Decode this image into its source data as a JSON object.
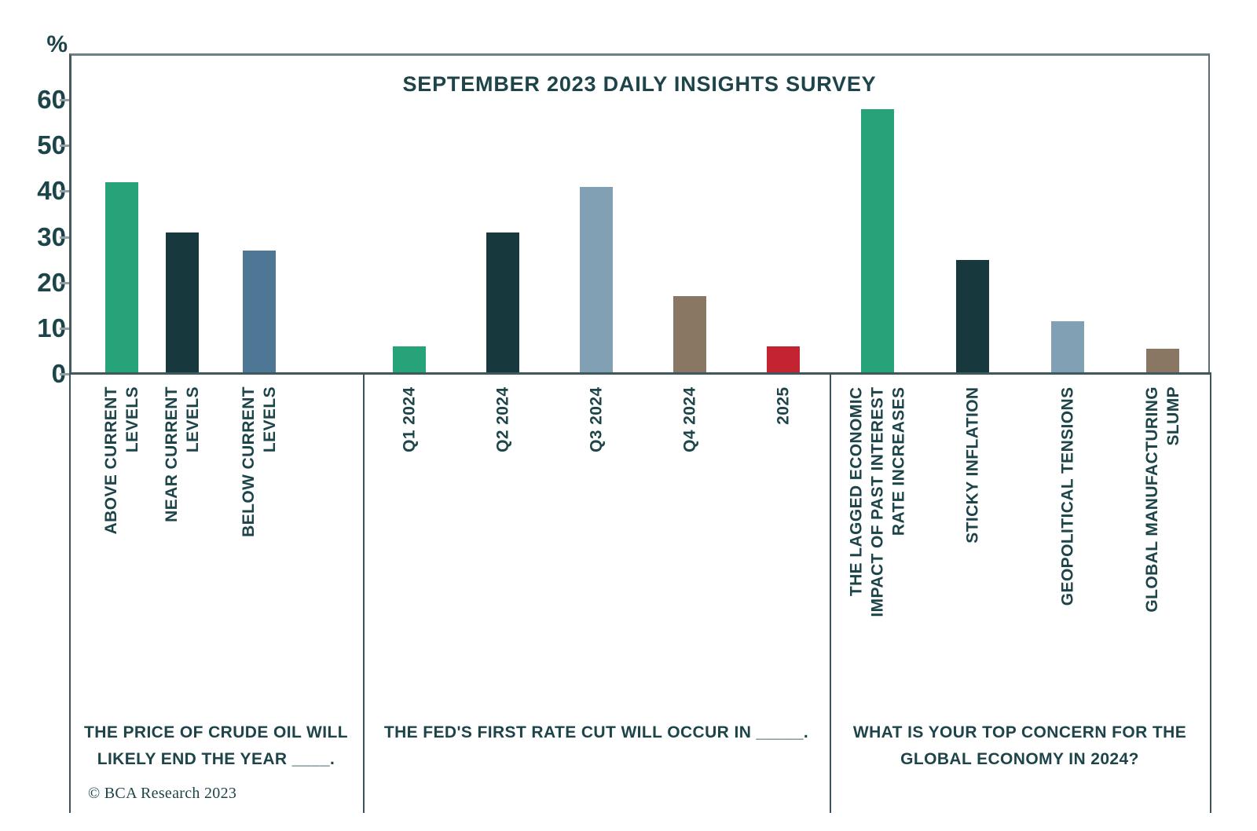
{
  "title": "SEPTEMBER 2023 DAILY INSIGHTS SURVEY",
  "y_axis": {
    "unit_label": "%",
    "ticks": [
      60,
      50,
      40,
      30,
      20,
      10,
      0
    ]
  },
  "footer": {
    "copyright": "© BCA Research 2023"
  },
  "colors": {
    "text": "#1d4549",
    "green": "#27a37a",
    "dark_teal": "#17393d",
    "slate_blue": "#4e7795",
    "light_blue_gray": "#82a0b4",
    "brown": "#8a7763",
    "red": "#c42431"
  },
  "chart_data": {
    "type": "bar",
    "title": "SEPTEMBER 2023 DAILY INSIGHTS SURVEY",
    "ylabel": "%",
    "ylim": [
      0,
      65
    ],
    "yticks": [
      0,
      10,
      20,
      30,
      40,
      50,
      60
    ],
    "grid": false,
    "legend": false,
    "panels": [
      {
        "question": "THE PRICE OF CRUDE OIL WILL LIKELY END THE YEAR ____.",
        "question_lines": [
          "THE PRICE OF CRUDE OIL WILL",
          "LIKELY END THE YEAR ____."
        ],
        "bars": [
          {
            "label": "ABOVE CURRENT LEVELS",
            "label_lines": [
              "ABOVE CURRENT",
              "LEVELS"
            ],
            "value": 42,
            "color": "#27a37a"
          },
          {
            "label": "NEAR CURRENT LEVELS",
            "label_lines": [
              "NEAR CURRENT",
              "LEVELS"
            ],
            "value": 31,
            "color": "#17393d"
          },
          {
            "label": "BELOW CURRENT LEVELS",
            "label_lines": [
              "BELOW CURRENT",
              "LEVELS"
            ],
            "value": 27,
            "color": "#4e7795"
          }
        ]
      },
      {
        "question": "THE FED'S FIRST RATE CUT WILL OCCUR IN _____.",
        "question_lines": [
          "THE FED'S FIRST RATE CUT WILL OCCUR IN _____."
        ],
        "bars": [
          {
            "label": "Q1 2024",
            "label_lines": [
              "Q1 2024"
            ],
            "value": 6,
            "color": "#27a37a"
          },
          {
            "label": "Q2 2024",
            "label_lines": [
              "Q2 2024"
            ],
            "value": 31,
            "color": "#17393d"
          },
          {
            "label": "Q3 2024",
            "label_lines": [
              "Q3 2024"
            ],
            "value": 41,
            "color": "#82a0b4"
          },
          {
            "label": "Q4 2024",
            "label_lines": [
              "Q4 2024"
            ],
            "value": 17,
            "color": "#8a7763"
          },
          {
            "label": "2025",
            "label_lines": [
              "2025"
            ],
            "value": 6,
            "color": "#c42431"
          }
        ]
      },
      {
        "question": "WHAT IS YOUR TOP CONCERN FOR THE GLOBAL ECONOMY IN 2024?",
        "question_lines": [
          "WHAT IS YOUR TOP CONCERN FOR THE",
          "GLOBAL ECONOMY IN 2024?"
        ],
        "bars": [
          {
            "label": "THE LAGGED ECONOMIC IMPACT OF PAST INTEREST RATE INCREASES",
            "label_lines": [
              "THE LAGGED ECONOMIC",
              "IMPACT OF PAST INTEREST",
              "RATE INCREASES"
            ],
            "value": 58,
            "color": "#27a37a"
          },
          {
            "label": "STICKY INFLATION",
            "label_lines": [
              "STICKY INFLATION"
            ],
            "value": 25,
            "color": "#17393d"
          },
          {
            "label": "GEOPOLITICAL TENSIONS",
            "label_lines": [
              "GEOPOLITICAL TENSIONS"
            ],
            "value": 11.5,
            "color": "#82a0b4"
          },
          {
            "label": "GLOBAL MANUFACTURING SLUMP",
            "label_lines": [
              "GLOBAL MANUFACTURING",
              "SLUMP"
            ],
            "value": 5.5,
            "color": "#8a7763"
          }
        ]
      }
    ]
  }
}
